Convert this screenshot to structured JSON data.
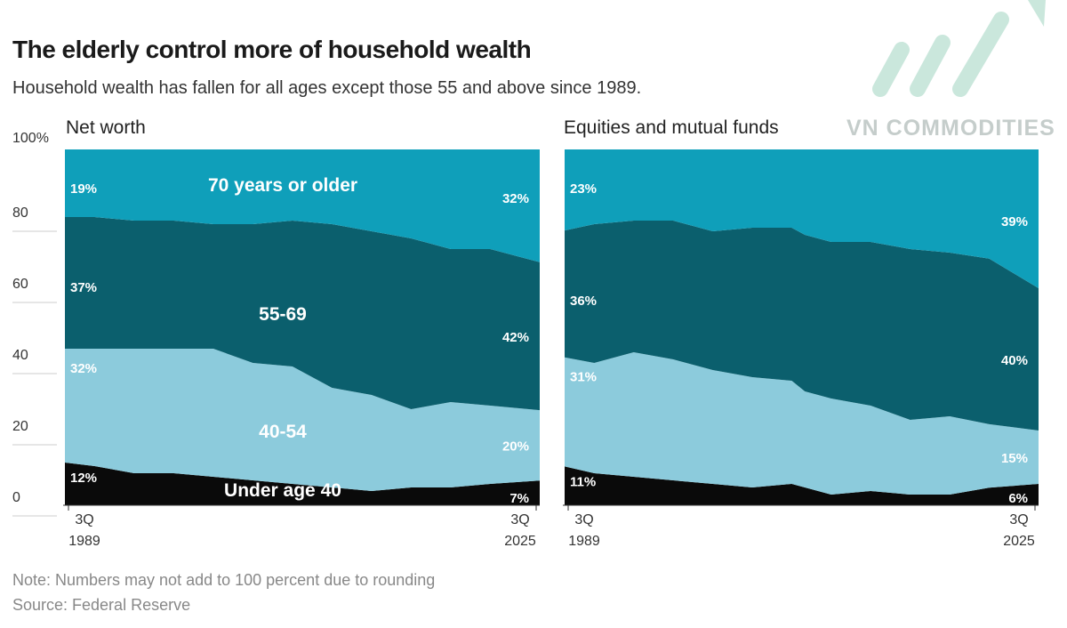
{
  "header": {
    "title": "The elderly control more of household wealth",
    "subtitle": "Household wealth has fallen for all ages except those 55 and above since 1989."
  },
  "footer": {
    "note": "Note: Numbers may not add to 100 percent due to rounding",
    "source": "Source: Federal Reserve"
  },
  "watermark": {
    "text": "VN COMMODITIES"
  },
  "colors": {
    "70_plus": "#0f9fba",
    "55_69": "#0b5f6d",
    "40_54": "#8ccbdc",
    "under_40": "#0a0a0a"
  },
  "chart_data": [
    {
      "type": "area",
      "stacked": true,
      "title": "Net worth",
      "ylim": [
        0,
        100
      ],
      "yticks": [
        "100%",
        "80",
        "60",
        "40",
        "20",
        "0"
      ],
      "xticks": [
        {
          "q": "3Q",
          "y": "1989"
        },
        {
          "q": "3Q",
          "y": "2025"
        }
      ],
      "x": [
        1989.75,
        1992,
        1995,
        1998,
        2001,
        2004,
        2007,
        2010,
        2013,
        2016,
        2019,
        2022,
        2025.75
      ],
      "series": [
        {
          "name": "Under age 40",
          "values": [
            12,
            11,
            9,
            9,
            8,
            7,
            6,
            5,
            4,
            5,
            5,
            6,
            7
          ],
          "label_start": "12%",
          "label_end": "7%"
        },
        {
          "name": "40-54",
          "values": [
            32,
            33,
            35,
            35,
            36,
            33,
            33,
            28,
            27,
            22,
            24,
            22,
            20
          ],
          "label_start": "32%",
          "label_end": "20%"
        },
        {
          "name": "55-69",
          "values": [
            37,
            37,
            36,
            36,
            35,
            39,
            41,
            46,
            46,
            48,
            43,
            44,
            42
          ],
          "label_start": "37%",
          "label_end": "42%"
        },
        {
          "name": "70 years or older",
          "values": [
            19,
            19,
            20,
            20,
            21,
            21,
            20,
            21,
            23,
            25,
            28,
            28,
            32
          ],
          "label_start": "19%",
          "label_end": "32%"
        }
      ]
    },
    {
      "type": "area",
      "stacked": true,
      "title": "Equities and mutual funds",
      "ylim": [
        0,
        100
      ],
      "xticks": [
        {
          "q": "3Q",
          "y": "1989"
        },
        {
          "q": "3Q",
          "y": "2025"
        }
      ],
      "x": [
        1989.75,
        1992,
        1995,
        1998,
        2001,
        2004,
        2007,
        2008,
        2010,
        2013,
        2016,
        2019,
        2022,
        2025.75
      ],
      "series": [
        {
          "name": "Under age 40",
          "values": [
            11,
            9,
            8,
            7,
            6,
            5,
            6,
            5,
            3,
            4,
            3,
            3,
            5,
            6
          ],
          "label_start": "11%",
          "label_end": "6%"
        },
        {
          "name": "40-54",
          "values": [
            31,
            31,
            35,
            34,
            32,
            31,
            29,
            27,
            27,
            24,
            21,
            22,
            18,
            15
          ],
          "label_start": "31%",
          "label_end": "15%"
        },
        {
          "name": "55-69",
          "values": [
            36,
            39,
            37,
            39,
            39,
            42,
            43,
            44,
            44,
            46,
            48,
            46,
            47,
            40
          ],
          "label_start": "36%",
          "label_end": "40%"
        },
        {
          "name": "70 years or older",
          "values": [
            23,
            21,
            20,
            20,
            23,
            22,
            22,
            24,
            26,
            26,
            28,
            29,
            31,
            39
          ],
          "label_start": "23%",
          "label_end": "39%"
        }
      ]
    }
  ]
}
